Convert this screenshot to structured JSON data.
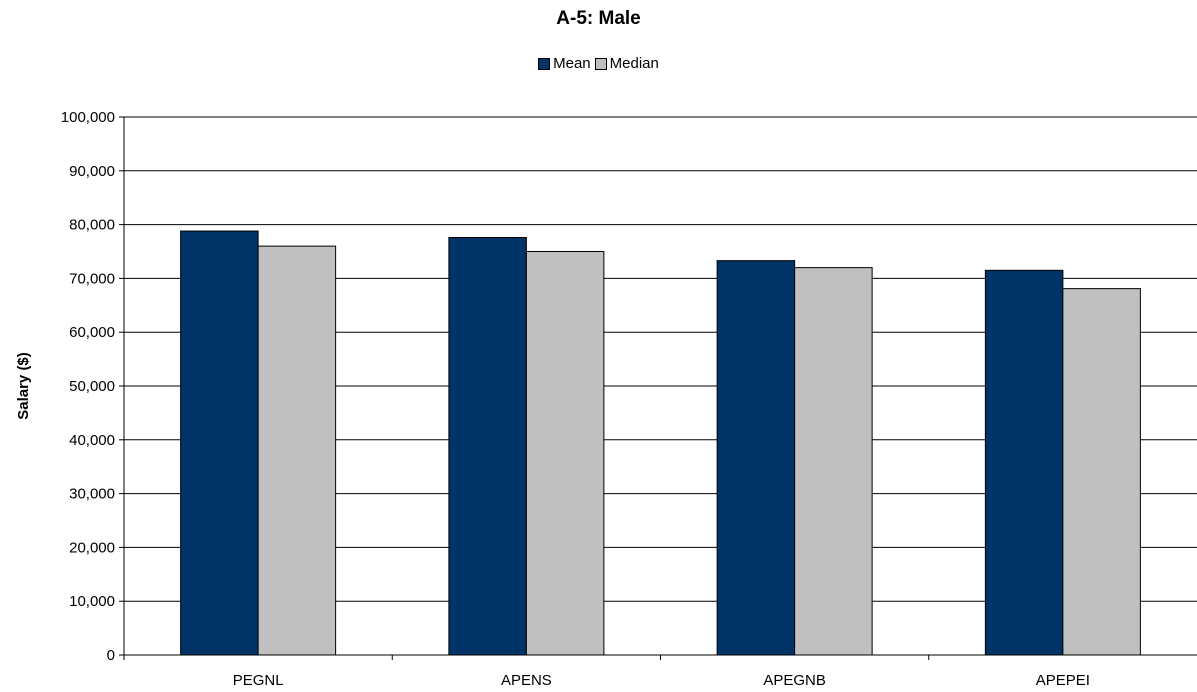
{
  "chart_data": {
    "type": "bar",
    "title": "A-5: Male",
    "ylabel": "Salary ($)",
    "xlabel": "",
    "categories": [
      "PEGNL",
      "APENS",
      "APEGNB",
      "APEPEI"
    ],
    "series": [
      {
        "name": "Mean",
        "values": [
          78800,
          77600,
          73300,
          71500
        ],
        "color": "#003366"
      },
      {
        "name": "Median",
        "values": [
          76000,
          75000,
          72000,
          68100
        ],
        "color": "#c0c0c0"
      }
    ],
    "ylim": [
      0,
      100000
    ],
    "yticks": [
      "0",
      "10,000",
      "20,000",
      "30,000",
      "40,000",
      "50,000",
      "60,000",
      "70,000",
      "80,000",
      "90,000",
      "100,000"
    ],
    "grid": true,
    "legend_position": "top"
  }
}
